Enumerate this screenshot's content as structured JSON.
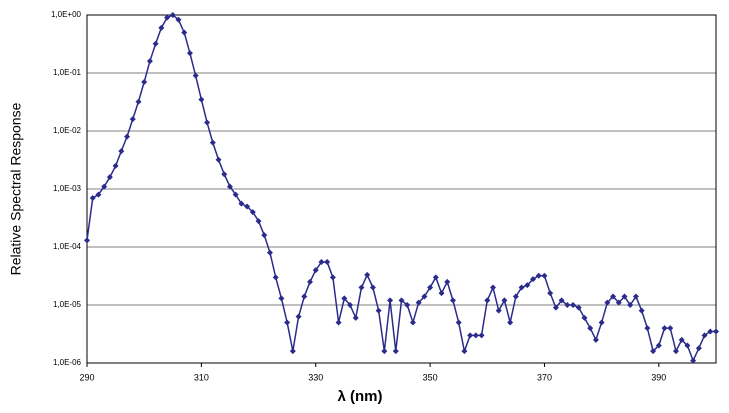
{
  "chart_data": {
    "type": "line",
    "log_y": true,
    "grid": true,
    "color": "#2b2b8c",
    "xlabel": "λ (nm)",
    "ylabel": "Relative Spectral Response",
    "xlim": [
      290,
      400
    ],
    "xticks": [
      290,
      310,
      330,
      350,
      370,
      390
    ],
    "ylim": [
      1e-06,
      1
    ],
    "yticks": [
      {
        "value": 1e-06,
        "label": "1,0E-06"
      },
      {
        "value": 1e-05,
        "label": "1,0E-05"
      },
      {
        "value": 0.0001,
        "label": "1,0E-04"
      },
      {
        "value": 0.001,
        "label": "1,0E-03"
      },
      {
        "value": 0.01,
        "label": "1,0E-02"
      },
      {
        "value": 0.1,
        "label": "1,0E-01"
      },
      {
        "value": 1,
        "label": "1,0E+00"
      }
    ],
    "x": [
      290,
      291,
      292,
      293,
      294,
      295,
      296,
      297,
      298,
      299,
      300,
      301,
      302,
      303,
      304,
      305,
      306,
      307,
      308,
      309,
      310,
      311,
      312,
      313,
      314,
      315,
      316,
      317,
      318,
      319,
      320,
      321,
      322,
      323,
      324,
      325,
      326,
      327,
      328,
      329,
      330,
      331,
      332,
      333,
      334,
      335,
      336,
      337,
      338,
      339,
      340,
      341,
      342,
      343,
      344,
      345,
      346,
      347,
      348,
      349,
      350,
      351,
      352,
      353,
      354,
      355,
      356,
      357,
      358,
      359,
      360,
      361,
      362,
      363,
      364,
      365,
      366,
      367,
      368,
      369,
      370,
      371,
      372,
      373,
      374,
      375,
      376,
      377,
      378,
      379,
      380,
      381,
      382,
      383,
      384,
      385,
      386,
      387,
      388,
      389,
      390,
      391,
      392,
      393,
      394,
      395,
      396,
      397,
      398,
      399,
      400
    ],
    "values": [
      0.00013,
      0.0007,
      0.0008,
      0.0011,
      0.0016,
      0.0025,
      0.0045,
      0.008,
      0.016,
      0.032,
      0.07,
      0.16,
      0.32,
      0.6,
      0.9,
      1.0,
      0.83,
      0.5,
      0.22,
      0.09,
      0.035,
      0.014,
      0.0063,
      0.0032,
      0.0018,
      0.0011,
      0.0008,
      0.00056,
      0.0005,
      0.0004,
      0.00028,
      0.00016,
      8e-05,
      3e-05,
      1.3e-05,
      5e-06,
      1.6e-06,
      6.3e-06,
      1.4e-05,
      2.5e-05,
      4e-05,
      5.5e-05,
      5.5e-05,
      3e-05,
      5e-06,
      1.3e-05,
      1e-05,
      6e-06,
      2e-05,
      3.3e-05,
      2e-05,
      8e-06,
      1.6e-06,
      1.2e-05,
      1.6e-06,
      1.2e-05,
      1e-05,
      5e-06,
      1.1e-05,
      1.4e-05,
      2e-05,
      3e-05,
      1.6e-05,
      2.5e-05,
      1.2e-05,
      5e-06,
      1.6e-06,
      3e-06,
      3e-06,
      3e-06,
      1.2e-05,
      2e-05,
      8e-06,
      1.2e-05,
      5e-06,
      1.4e-05,
      2e-05,
      2.2e-05,
      2.8e-05,
      3.2e-05,
      3.2e-05,
      1.6e-05,
      9e-06,
      1.2e-05,
      1e-05,
      1e-05,
      9e-06,
      6e-06,
      4e-06,
      2.5e-06,
      5e-06,
      1.1e-05,
      1.4e-05,
      1.1e-05,
      1.4e-05,
      1e-05,
      1.4e-05,
      8e-06,
      4e-06,
      1.6e-06,
      2e-06,
      4e-06,
      4e-06,
      1.6e-06,
      2.5e-06,
      2e-06,
      1.1e-06,
      1.8e-06,
      3e-06,
      3.5e-06,
      3.5e-06
    ]
  }
}
